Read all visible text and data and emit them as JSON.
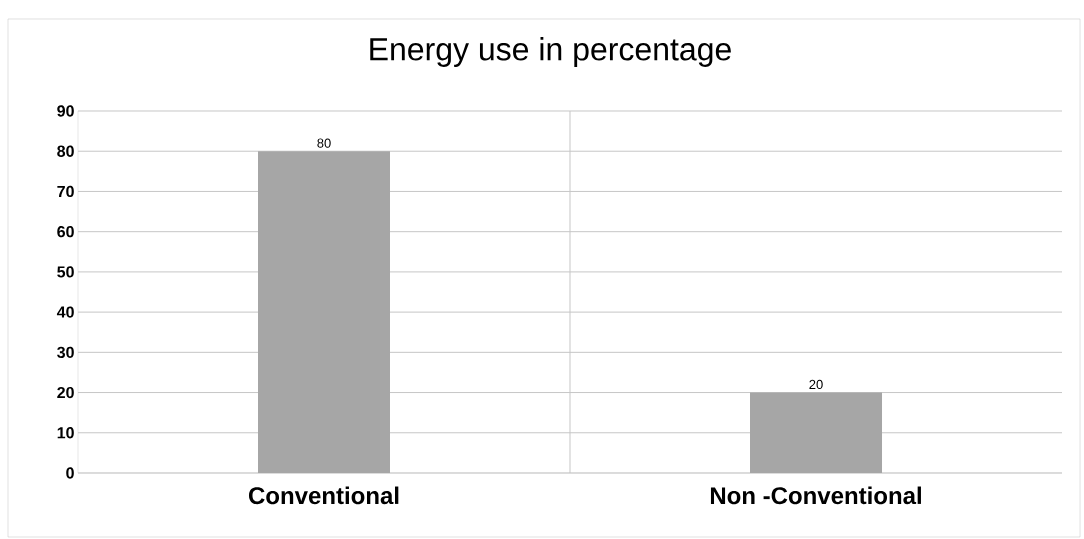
{
  "chart_data": {
    "type": "bar",
    "title": "Energy use in percentage",
    "categories": [
      "Conventional",
      "Non -Conventional"
    ],
    "values": [
      80,
      20
    ],
    "color": "#a6a6a6",
    "ylim": [
      0,
      90
    ],
    "yticks": [
      0,
      10,
      20,
      30,
      40,
      50,
      60,
      70,
      80,
      90
    ],
    "grid": true,
    "data_labels": true
  }
}
